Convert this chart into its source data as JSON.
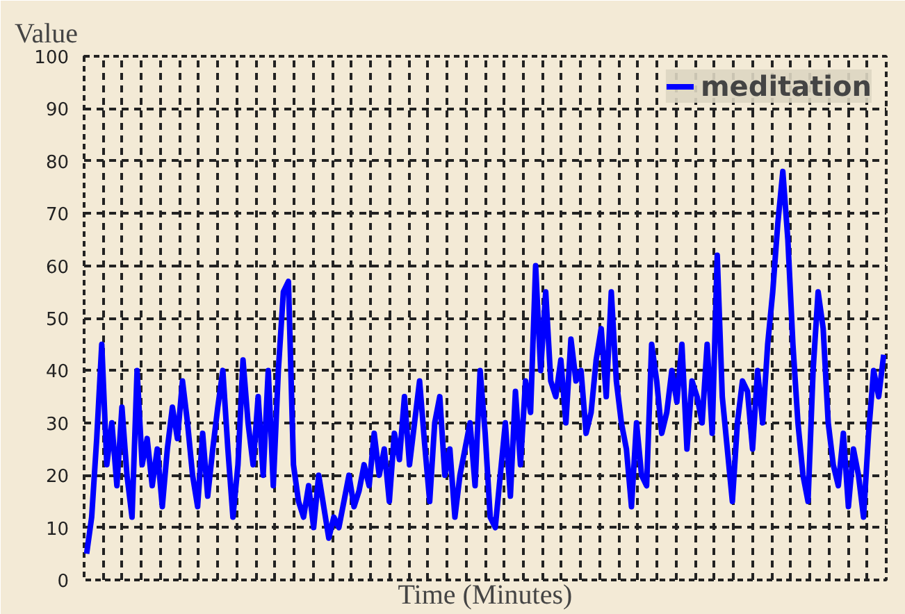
{
  "chart_data": {
    "type": "line",
    "xlabel": "Time (Minutes)",
    "ylabel": "Value",
    "ylim": [
      0,
      100
    ],
    "yticks": [
      0,
      10,
      20,
      30,
      40,
      50,
      60,
      70,
      80,
      90,
      100
    ],
    "grid": true,
    "legend": "top right",
    "line_style": "solid",
    "marker": "none",
    "series": [
      {
        "name": "meditation",
        "color": "#0000ff",
        "values": [
          5,
          12,
          27,
          45,
          22,
          30,
          18,
          33,
          20,
          12,
          40,
          22,
          27,
          18,
          25,
          14,
          25,
          33,
          27,
          38,
          30,
          20,
          14,
          28,
          16,
          25,
          33,
          40,
          25,
          12,
          22,
          42,
          30,
          22,
          35,
          20,
          40,
          18,
          40,
          55,
          57,
          22,
          15,
          12,
          18,
          10,
          20,
          14,
          8,
          12,
          10,
          15,
          20,
          14,
          17,
          22,
          18,
          28,
          20,
          25,
          15,
          28,
          23,
          35,
          22,
          30,
          38,
          26,
          15,
          30,
          35,
          20,
          25,
          12,
          20,
          25,
          30,
          18,
          40,
          28,
          12,
          10,
          20,
          30,
          16,
          36,
          22,
          38,
          32,
          60,
          40,
          55,
          38,
          35,
          42,
          30,
          46,
          38,
          40,
          28,
          32,
          42,
          48,
          35,
          55,
          38,
          30,
          25,
          14,
          30,
          20,
          18,
          45,
          38,
          28,
          32,
          40,
          34,
          45,
          25,
          38,
          35,
          30,
          45,
          28,
          62,
          35,
          25,
          15,
          30,
          38,
          36,
          25,
          40,
          30,
          45,
          55,
          68,
          78,
          65,
          45,
          30,
          20,
          15,
          40,
          55,
          48,
          30,
          22,
          18,
          28,
          14,
          25,
          20,
          12,
          28,
          40,
          35,
          43
        ]
      }
    ]
  }
}
